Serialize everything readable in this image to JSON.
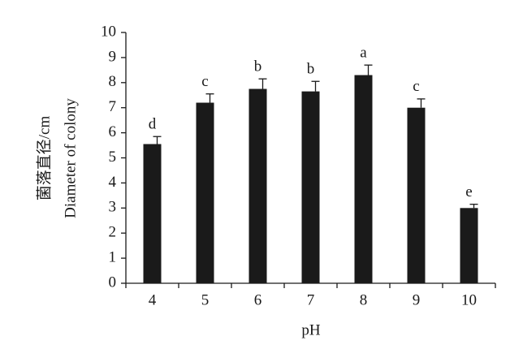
{
  "chart_data": {
    "type": "bar",
    "y_label_lines": [
      "菌落直径/cm",
      "Diameter of colony"
    ],
    "x_label": "pH",
    "categories": [
      "4",
      "5",
      "6",
      "7",
      "8",
      "9",
      "10"
    ],
    "values": [
      5.55,
      7.2,
      7.75,
      7.65,
      8.3,
      7.0,
      3.0
    ],
    "errors": [
      0.3,
      0.35,
      0.4,
      0.4,
      0.4,
      0.35,
      0.15
    ],
    "annotations": [
      "d",
      "c",
      "b",
      "b",
      "a",
      "c",
      "e"
    ],
    "color": "#1a1a1a",
    "ylim": [
      0,
      10
    ],
    "yticks": [
      0,
      1,
      2,
      3,
      4,
      5,
      6,
      7,
      8,
      9,
      10
    ]
  }
}
